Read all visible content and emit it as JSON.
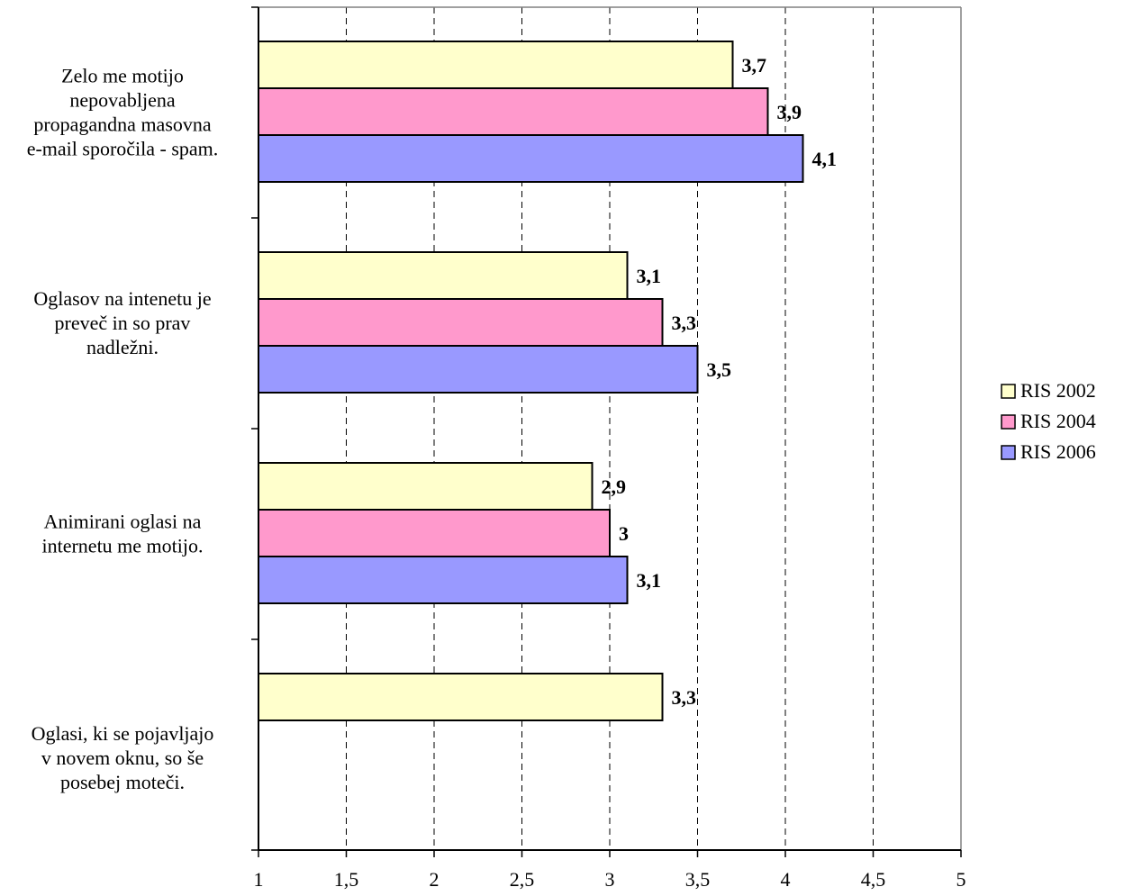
{
  "chart_data": {
    "type": "bar",
    "orientation": "horizontal",
    "categories": [
      [
        "Zelo me motijo",
        "nepovabljena",
        "propagandna masovna",
        "e-mail sporočila - spam."
      ],
      [
        "Oglasov na intenetu je",
        "preveč in so prav",
        "nadležni."
      ],
      [
        "Animirani oglasi na",
        "internetu me motijo."
      ],
      [
        "Oglasi, ki se pojavljajo",
        "v novem oknu, so še",
        "posebej moteči."
      ]
    ],
    "series": [
      {
        "name": "RIS 2002",
        "color": "#ffffcc",
        "values": [
          3.7,
          3.1,
          2.9,
          3.3
        ],
        "labels": [
          "3,7",
          "3,1",
          "2,9",
          "3,3"
        ]
      },
      {
        "name": "RIS 2004",
        "color": "#ff99cc",
        "values": [
          3.9,
          3.3,
          3.0,
          null
        ],
        "labels": [
          "3,9",
          "3,3",
          "3",
          ""
        ]
      },
      {
        "name": "RIS 2006",
        "color": "#9999ff",
        "values": [
          4.1,
          3.5,
          3.1,
          null
        ],
        "labels": [
          "4,1",
          "3,5",
          "3,1",
          ""
        ]
      }
    ],
    "xlim": [
      1,
      5
    ],
    "xticks": [
      1,
      1.5,
      2,
      2.5,
      3,
      3.5,
      4,
      4.5,
      5
    ],
    "xtick_labels": [
      "1",
      "1,5",
      "2",
      "2,5",
      "3",
      "3,5",
      "4",
      "4,5",
      "5"
    ],
    "grid": "vertical-dashed",
    "legend": "right",
    "title": "",
    "xlabel": "",
    "ylabel": ""
  }
}
